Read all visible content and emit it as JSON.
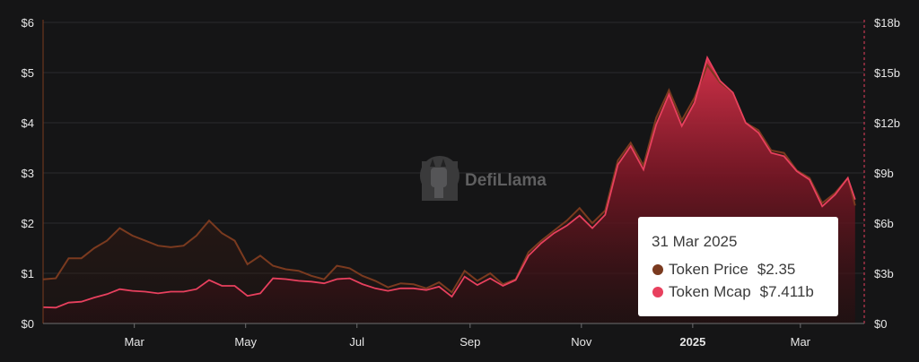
{
  "chart_data": {
    "type": "line",
    "x_ticks": [
      "Mar",
      "May",
      "Jul",
      "Sep",
      "Nov",
      "2025",
      "Mar"
    ],
    "y_left_ticks": [
      "$0",
      "$1",
      "$2",
      "$3",
      "$4",
      "$5",
      "$6"
    ],
    "y_right_ticks": [
      "$0",
      "$3b",
      "$6b",
      "$9b",
      "$12b",
      "$15b",
      "$18b"
    ],
    "y_left_range": [
      0,
      6
    ],
    "y_right_range": [
      0,
      18
    ],
    "x_range": [
      "2024-01-11",
      "2025-04-05"
    ],
    "legend": "tooltip",
    "series": [
      {
        "name": "Token Price",
        "axis": "left",
        "color": "#7a3a1f",
        "points": [
          [
            "2024-01-11",
            0.88
          ],
          [
            "2024-01-18",
            0.9
          ],
          [
            "2024-01-25",
            1.3
          ],
          [
            "2024-02-01",
            1.3
          ],
          [
            "2024-02-08",
            1.5
          ],
          [
            "2024-02-15",
            1.65
          ],
          [
            "2024-02-22",
            1.9
          ],
          [
            "2024-02-29",
            1.75
          ],
          [
            "2024-03-07",
            1.65
          ],
          [
            "2024-03-14",
            1.55
          ],
          [
            "2024-03-21",
            1.52
          ],
          [
            "2024-03-28",
            1.55
          ],
          [
            "2024-04-04",
            1.75
          ],
          [
            "2024-04-11",
            2.05
          ],
          [
            "2024-04-18",
            1.8
          ],
          [
            "2024-04-25",
            1.65
          ],
          [
            "2024-05-02",
            1.18
          ],
          [
            "2024-05-09",
            1.35
          ],
          [
            "2024-05-16",
            1.15
          ],
          [
            "2024-05-23",
            1.08
          ],
          [
            "2024-05-30",
            1.05
          ],
          [
            "2024-06-06",
            0.95
          ],
          [
            "2024-06-13",
            0.88
          ],
          [
            "2024-06-20",
            1.15
          ],
          [
            "2024-06-27",
            1.1
          ],
          [
            "2024-07-04",
            0.95
          ],
          [
            "2024-07-11",
            0.85
          ],
          [
            "2024-07-18",
            0.72
          ],
          [
            "2024-07-25",
            0.8
          ],
          [
            "2024-08-01",
            0.78
          ],
          [
            "2024-08-08",
            0.7
          ],
          [
            "2024-08-15",
            0.82
          ],
          [
            "2024-08-22",
            0.62
          ],
          [
            "2024-08-29",
            1.05
          ],
          [
            "2024-09-05",
            0.85
          ],
          [
            "2024-09-12",
            1.0
          ],
          [
            "2024-09-19",
            0.78
          ],
          [
            "2024-09-26",
            0.88
          ],
          [
            "2024-10-03",
            1.42
          ],
          [
            "2024-10-10",
            1.65
          ],
          [
            "2024-10-17",
            1.85
          ],
          [
            "2024-10-24",
            2.05
          ],
          [
            "2024-10-31",
            2.3
          ],
          [
            "2024-11-07",
            2.0
          ],
          [
            "2024-11-14",
            2.25
          ],
          [
            "2024-11-21",
            3.25
          ],
          [
            "2024-11-28",
            3.6
          ],
          [
            "2024-12-05",
            3.15
          ],
          [
            "2024-12-12",
            4.1
          ],
          [
            "2024-12-19",
            4.65
          ],
          [
            "2024-12-26",
            4.05
          ],
          [
            "2025-01-02",
            4.5
          ],
          [
            "2025-01-09",
            5.15
          ],
          [
            "2025-01-16",
            4.8
          ],
          [
            "2025-01-23",
            4.6
          ],
          [
            "2025-01-30",
            4.0
          ],
          [
            "2025-02-06",
            3.85
          ],
          [
            "2025-02-13",
            3.45
          ],
          [
            "2025-02-20",
            3.4
          ],
          [
            "2025-02-27",
            3.05
          ],
          [
            "2025-03-06",
            2.9
          ],
          [
            "2025-03-13",
            2.4
          ],
          [
            "2025-03-20",
            2.6
          ],
          [
            "2025-03-27",
            2.9
          ],
          [
            "2025-03-31",
            2.35
          ]
        ]
      },
      {
        "name": "Token Mcap",
        "axis": "right",
        "color": "#e8405e",
        "points": [
          [
            "2024-01-11",
            0.97
          ],
          [
            "2024-01-18",
            0.95
          ],
          [
            "2024-01-25",
            1.25
          ],
          [
            "2024-02-01",
            1.3
          ],
          [
            "2024-02-08",
            1.55
          ],
          [
            "2024-02-15",
            1.75
          ],
          [
            "2024-02-22",
            2.05
          ],
          [
            "2024-02-29",
            1.95
          ],
          [
            "2024-03-07",
            1.9
          ],
          [
            "2024-03-14",
            1.8
          ],
          [
            "2024-03-21",
            1.9
          ],
          [
            "2024-03-28",
            1.9
          ],
          [
            "2024-04-04",
            2.05
          ],
          [
            "2024-04-11",
            2.6
          ],
          [
            "2024-04-18",
            2.25
          ],
          [
            "2024-04-25",
            2.25
          ],
          [
            "2024-05-02",
            1.65
          ],
          [
            "2024-05-09",
            1.8
          ],
          [
            "2024-05-16",
            2.7
          ],
          [
            "2024-05-23",
            2.65
          ],
          [
            "2024-05-30",
            2.55
          ],
          [
            "2024-06-06",
            2.5
          ],
          [
            "2024-06-13",
            2.4
          ],
          [
            "2024-06-20",
            2.65
          ],
          [
            "2024-06-27",
            2.7
          ],
          [
            "2024-07-04",
            2.35
          ],
          [
            "2024-07-11",
            2.1
          ],
          [
            "2024-07-18",
            1.95
          ],
          [
            "2024-07-25",
            2.1
          ],
          [
            "2024-08-01",
            2.1
          ],
          [
            "2024-08-08",
            2.0
          ],
          [
            "2024-08-15",
            2.2
          ],
          [
            "2024-08-22",
            1.6
          ],
          [
            "2024-08-29",
            2.8
          ],
          [
            "2024-09-05",
            2.3
          ],
          [
            "2024-09-12",
            2.7
          ],
          [
            "2024-09-19",
            2.25
          ],
          [
            "2024-09-26",
            2.6
          ],
          [
            "2024-10-03",
            4.05
          ],
          [
            "2024-10-10",
            4.8
          ],
          [
            "2024-10-17",
            5.4
          ],
          [
            "2024-10-24",
            5.85
          ],
          [
            "2024-10-31",
            6.45
          ],
          [
            "2024-11-07",
            5.7
          ],
          [
            "2024-11-14",
            6.5
          ],
          [
            "2024-11-21",
            9.5
          ],
          [
            "2024-11-28",
            10.6
          ],
          [
            "2024-12-05",
            9.2
          ],
          [
            "2024-12-12",
            11.9
          ],
          [
            "2024-12-19",
            13.7
          ],
          [
            "2024-12-26",
            11.8
          ],
          [
            "2025-01-02",
            13.2
          ],
          [
            "2025-01-09",
            15.9
          ],
          [
            "2025-01-16",
            14.5
          ],
          [
            "2025-01-23",
            13.8
          ],
          [
            "2025-01-30",
            12.0
          ],
          [
            "2025-02-06",
            11.4
          ],
          [
            "2025-02-13",
            10.2
          ],
          [
            "2025-02-20",
            10.0
          ],
          [
            "2025-02-27",
            9.1
          ],
          [
            "2025-03-06",
            8.6
          ],
          [
            "2025-03-13",
            7.0
          ],
          [
            "2025-03-20",
            7.7
          ],
          [
            "2025-03-27",
            8.7
          ],
          [
            "2025-03-31",
            7.411
          ]
        ]
      }
    ]
  },
  "watermark": {
    "text": "DefiLlama",
    "icon": "llama-logo-icon"
  },
  "tooltip": {
    "date": "31 Mar 2025",
    "rows": [
      {
        "label": "Token Price",
        "value": "$2.35",
        "color": "#7a3a1f"
      },
      {
        "label": "Token Mcap",
        "value": "$7.411b",
        "color": "#e8405e"
      }
    ]
  },
  "colors": {
    "background": "#151516",
    "grid": "#2b2b2d",
    "price": "#7a3a1f",
    "mcap": "#e8405e",
    "cursor": "#e8405e"
  }
}
